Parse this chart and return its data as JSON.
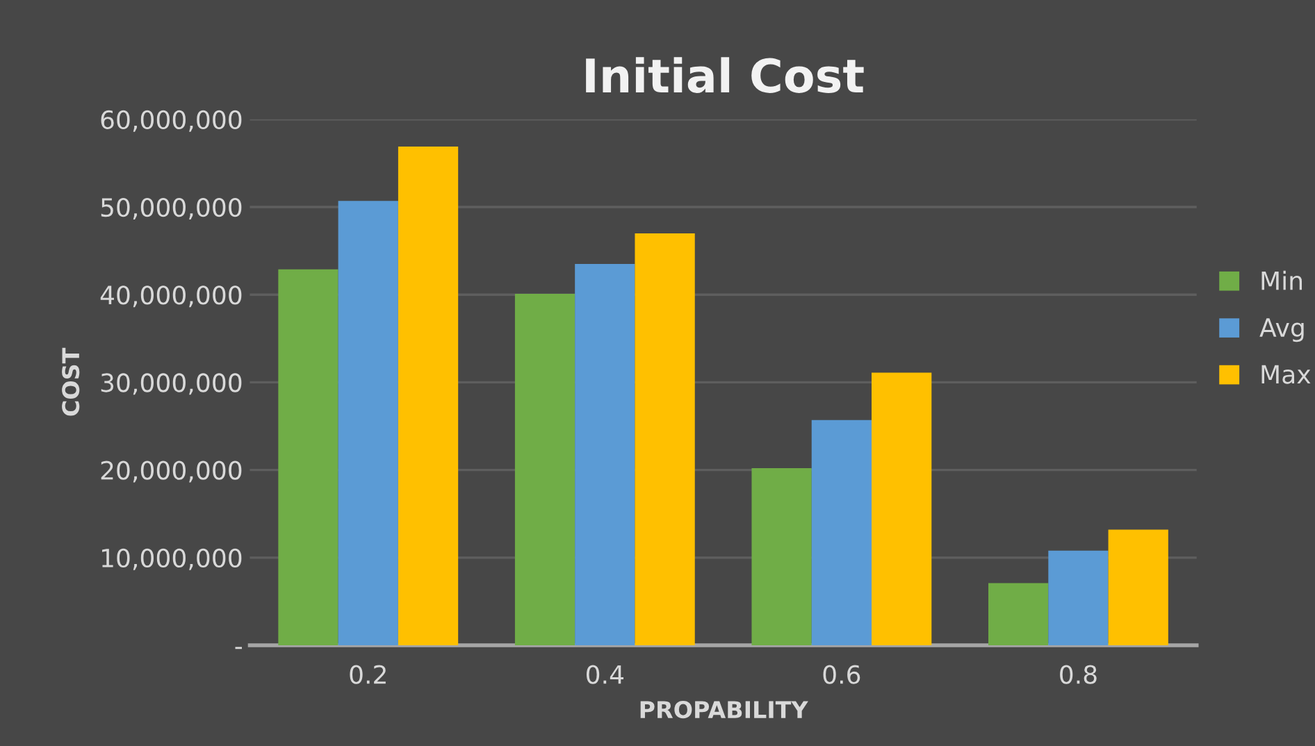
{
  "chart_data": {
    "type": "bar",
    "title": "Initial Cost",
    "xlabel": "PROPABILITY",
    "ylabel": "COST",
    "categories": [
      "0.2",
      "0.4",
      "0.6",
      "0.8"
    ],
    "series": [
      {
        "name": "Min",
        "color": "#70ad47",
        "values": [
          42900000,
          40100000,
          20200000,
          7100000
        ]
      },
      {
        "name": "Avg",
        "color": "#5b9bd5",
        "values": [
          50700000,
          43500000,
          25700000,
          10800000
        ]
      },
      {
        "name": "Max",
        "color": "#ffc000",
        "values": [
          56900000,
          47000000,
          31100000,
          13200000
        ]
      }
    ],
    "ylim": [
      0,
      60000000
    ],
    "yticks": [
      {
        "value": 0,
        "label": "-"
      },
      {
        "value": 10000000,
        "label": "10,000,000"
      },
      {
        "value": 20000000,
        "label": "20,000,000"
      },
      {
        "value": 30000000,
        "label": "30,000,000"
      },
      {
        "value": 40000000,
        "label": "40,000,000"
      },
      {
        "value": 50000000,
        "label": "50,000,000"
      },
      {
        "value": 60000000,
        "label": "60,000,000"
      }
    ],
    "grid": "y",
    "legend": "right"
  }
}
